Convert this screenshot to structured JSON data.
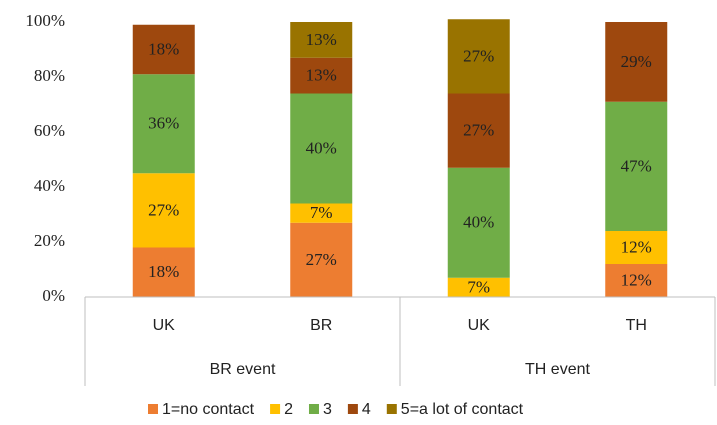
{
  "chart_data": {
    "type": "stacked_bar",
    "categories": [
      "UK",
      "BR",
      "UK",
      "TH"
    ],
    "groups": [
      "BR event",
      "TH event"
    ],
    "series": [
      {
        "name": "1=no contact",
        "color": "#ed7d31",
        "values": [
          18,
          27,
          null,
          12
        ],
        "value_labels": [
          "18%",
          "27%",
          null,
          "12%"
        ]
      },
      {
        "name": "2",
        "color": "#ffc000",
        "values": [
          27,
          7,
          7,
          12
        ],
        "value_labels": [
          "27%",
          "7%",
          "7%",
          "12%"
        ]
      },
      {
        "name": "3",
        "color": "#70ad47",
        "values": [
          36,
          40,
          40,
          47
        ],
        "value_labels": [
          "36%",
          "40%",
          "40%",
          "47%"
        ]
      },
      {
        "name": "4",
        "color": "#9e480e",
        "values": [
          18,
          13,
          27,
          29
        ],
        "value_labels": [
          "18%",
          "13%",
          "27%",
          "29%"
        ]
      },
      {
        "name": "5=a lot of contact",
        "color": "#997300",
        "values": [
          null,
          13,
          27,
          null
        ],
        "value_labels": [
          null,
          "13%",
          "27%",
          null
        ]
      }
    ],
    "ylim": [
      0,
      100
    ],
    "yticks": [
      {
        "value": 0,
        "label": "0%"
      },
      {
        "value": 20,
        "label": "20%"
      },
      {
        "value": 40,
        "label": "40%"
      },
      {
        "value": 60,
        "label": "60%"
      },
      {
        "value": 80,
        "label": "80%"
      },
      {
        "value": 100,
        "label": "100%"
      }
    ],
    "grid": false,
    "legend": "bottom"
  }
}
